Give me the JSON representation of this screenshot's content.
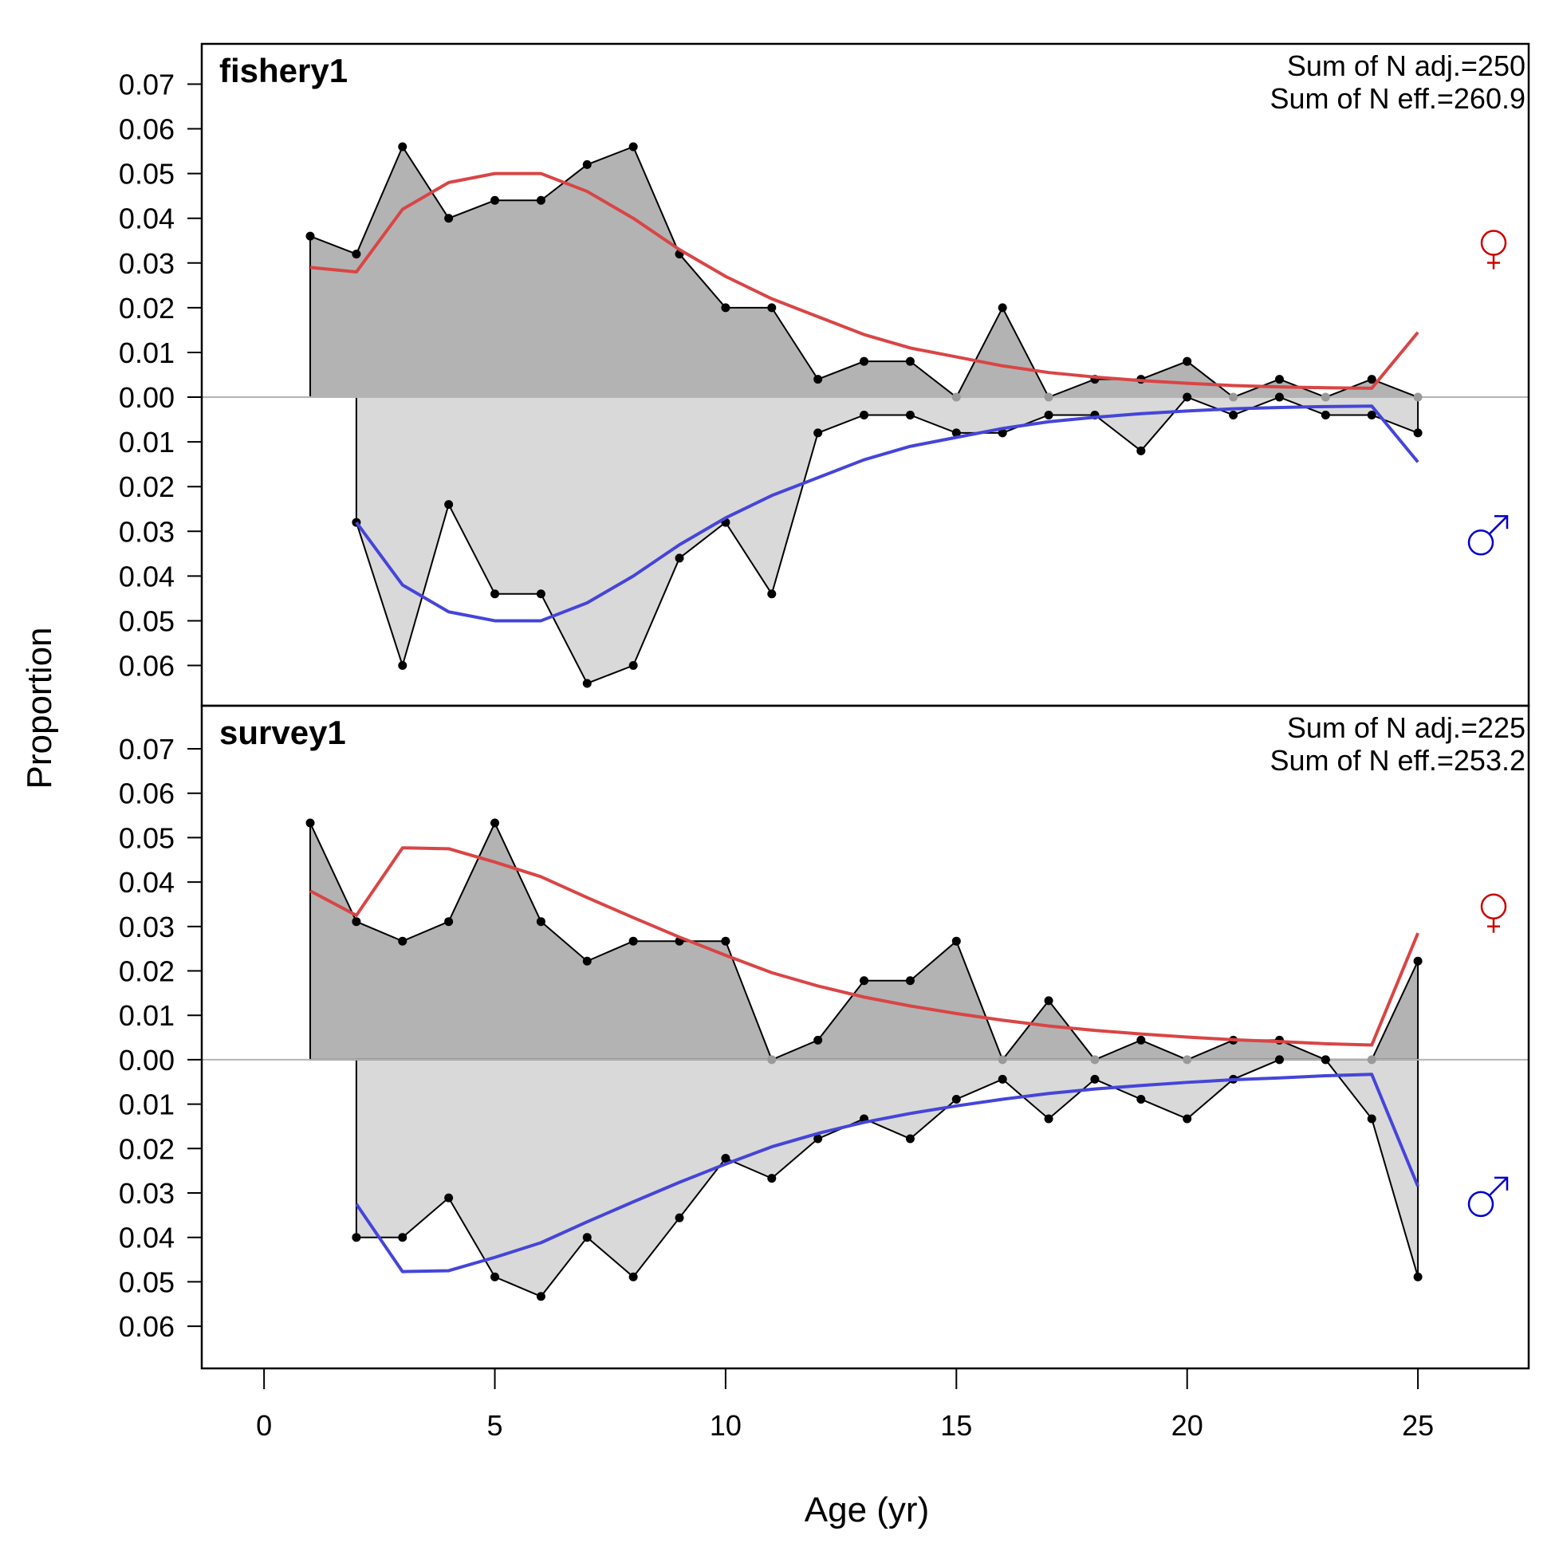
{
  "chart_data": {
    "type": "area",
    "xlabel": "Age (yr)",
    "ylabel": "Proportion",
    "x_ticks": [
      0,
      5,
      10,
      15,
      20,
      25
    ],
    "xlim": [
      -1.35,
      27.4
    ],
    "colors": {
      "female_fill": "#b3b3b3",
      "male_fill": "#d9d9d9",
      "female_line": "#d94545",
      "male_line": "#4545d9",
      "female_symbol": "#cc0000",
      "male_symbol": "#0000cc",
      "zero_line": "#b4b4b4"
    },
    "symbols": {
      "female": "♀",
      "male": "♂"
    },
    "panels": [
      {
        "title": "fishery1",
        "notes": [
          "Sum of N adj.=250",
          "Sum of N eff.=260.9"
        ],
        "ylim": [
          -0.069,
          0.079
        ],
        "female_ticks": [
          "0.07",
          "0.06",
          "0.05",
          "0.04",
          "0.03",
          "0.02",
          "0.01",
          "0.00"
        ],
        "male_ticks": [
          "0.01",
          "0.02",
          "0.03",
          "0.04",
          "0.05",
          "0.06"
        ],
        "ages": [
          1,
          2,
          3,
          4,
          5,
          6,
          7,
          8,
          9,
          10,
          11,
          12,
          13,
          14,
          15,
          16,
          17,
          18,
          19,
          20,
          21,
          22,
          23,
          24,
          25
        ],
        "female_observed": [
          0.036,
          0.032,
          0.056,
          0.04,
          0.044,
          0.044,
          0.052,
          0.056,
          0.032,
          0.02,
          0.02,
          0.004,
          0.008,
          0.008,
          0.0,
          0.02,
          0.0,
          0.004,
          0.004,
          0.008,
          0.0,
          0.004,
          0.0,
          0.004,
          0.0
        ],
        "female_expected": [
          0.029,
          0.028,
          0.042,
          0.048,
          0.05,
          0.05,
          0.046,
          0.04,
          0.033,
          0.027,
          0.022,
          0.018,
          0.014,
          0.011,
          0.009,
          0.007,
          0.0055,
          0.0045,
          0.0037,
          0.0031,
          0.0026,
          0.0023,
          0.0021,
          0.002,
          0.0145
        ],
        "male_ages": [
          2,
          3,
          4,
          5,
          6,
          7,
          8,
          9,
          10,
          11,
          12,
          13,
          14,
          15,
          16,
          17,
          18,
          19,
          20,
          21,
          22,
          23,
          24,
          25
        ],
        "male_observed": [
          0.028,
          0.06,
          0.024,
          0.044,
          0.044,
          0.064,
          0.06,
          0.036,
          0.028,
          0.044,
          0.008,
          0.004,
          0.004,
          0.008,
          0.008,
          0.004,
          0.004,
          0.012,
          0.0,
          0.004,
          0.0,
          0.004,
          0.004,
          0.008
        ],
        "male_expected": [
          0.028,
          0.042,
          0.048,
          0.05,
          0.05,
          0.046,
          0.04,
          0.033,
          0.027,
          0.022,
          0.018,
          0.014,
          0.011,
          0.009,
          0.007,
          0.0055,
          0.0045,
          0.0037,
          0.0031,
          0.0026,
          0.0023,
          0.0021,
          0.002,
          0.0145
        ]
      },
      {
        "title": "survey1",
        "notes": [
          "Sum of N adj.=225",
          "Sum of N eff.=253.2"
        ],
        "ylim": [
          -0.0695,
          0.0797
        ],
        "female_ticks": [
          "0.07",
          "0.06",
          "0.05",
          "0.04",
          "0.03",
          "0.02",
          "0.01",
          "0.00"
        ],
        "male_ticks": [
          "0.01",
          "0.02",
          "0.03",
          "0.04",
          "0.05",
          "0.06"
        ],
        "ages": [
          1,
          2,
          3,
          4,
          5,
          6,
          7,
          8,
          9,
          10,
          11,
          12,
          13,
          14,
          15,
          16,
          17,
          18,
          19,
          20,
          21,
          22,
          23,
          24,
          25
        ],
        "female_observed": [
          0.0533,
          0.0311,
          0.0267,
          0.0311,
          0.0533,
          0.0311,
          0.0222,
          0.0267,
          0.0267,
          0.0267,
          0.0,
          0.0044,
          0.0178,
          0.0178,
          0.0267,
          0.0,
          0.0133,
          0.0,
          0.0044,
          0.0,
          0.0044,
          0.0044,
          0.0,
          0.0,
          0.0222
        ],
        "female_expected": [
          0.038,
          0.0325,
          0.0477,
          0.0475,
          0.0445,
          0.0412,
          0.0365,
          0.032,
          0.0276,
          0.0235,
          0.0196,
          0.0166,
          0.0141,
          0.0121,
          0.0104,
          0.0089,
          0.0076,
          0.0066,
          0.0058,
          0.0051,
          0.0045,
          0.0041,
          0.0036,
          0.0033,
          0.0285
        ],
        "male_ages": [
          2,
          3,
          4,
          5,
          6,
          7,
          8,
          9,
          10,
          11,
          12,
          13,
          14,
          15,
          16,
          17,
          18,
          19,
          20,
          21,
          22,
          23,
          24,
          25
        ],
        "male_observed": [
          0.04,
          0.04,
          0.0311,
          0.0489,
          0.0533,
          0.04,
          0.0489,
          0.0356,
          0.0222,
          0.0267,
          0.0178,
          0.0133,
          0.0178,
          0.0089,
          0.0044,
          0.0133,
          0.0044,
          0.0089,
          0.0133,
          0.0044,
          0.0,
          0.0,
          0.0133,
          0.0489
        ],
        "male_expected": [
          0.0325,
          0.0477,
          0.0475,
          0.0445,
          0.0412,
          0.0365,
          0.032,
          0.0276,
          0.0235,
          0.0196,
          0.0166,
          0.0141,
          0.0121,
          0.0104,
          0.0089,
          0.0076,
          0.0066,
          0.0058,
          0.0051,
          0.0045,
          0.0041,
          0.0036,
          0.0033,
          0.0285
        ]
      }
    ]
  }
}
